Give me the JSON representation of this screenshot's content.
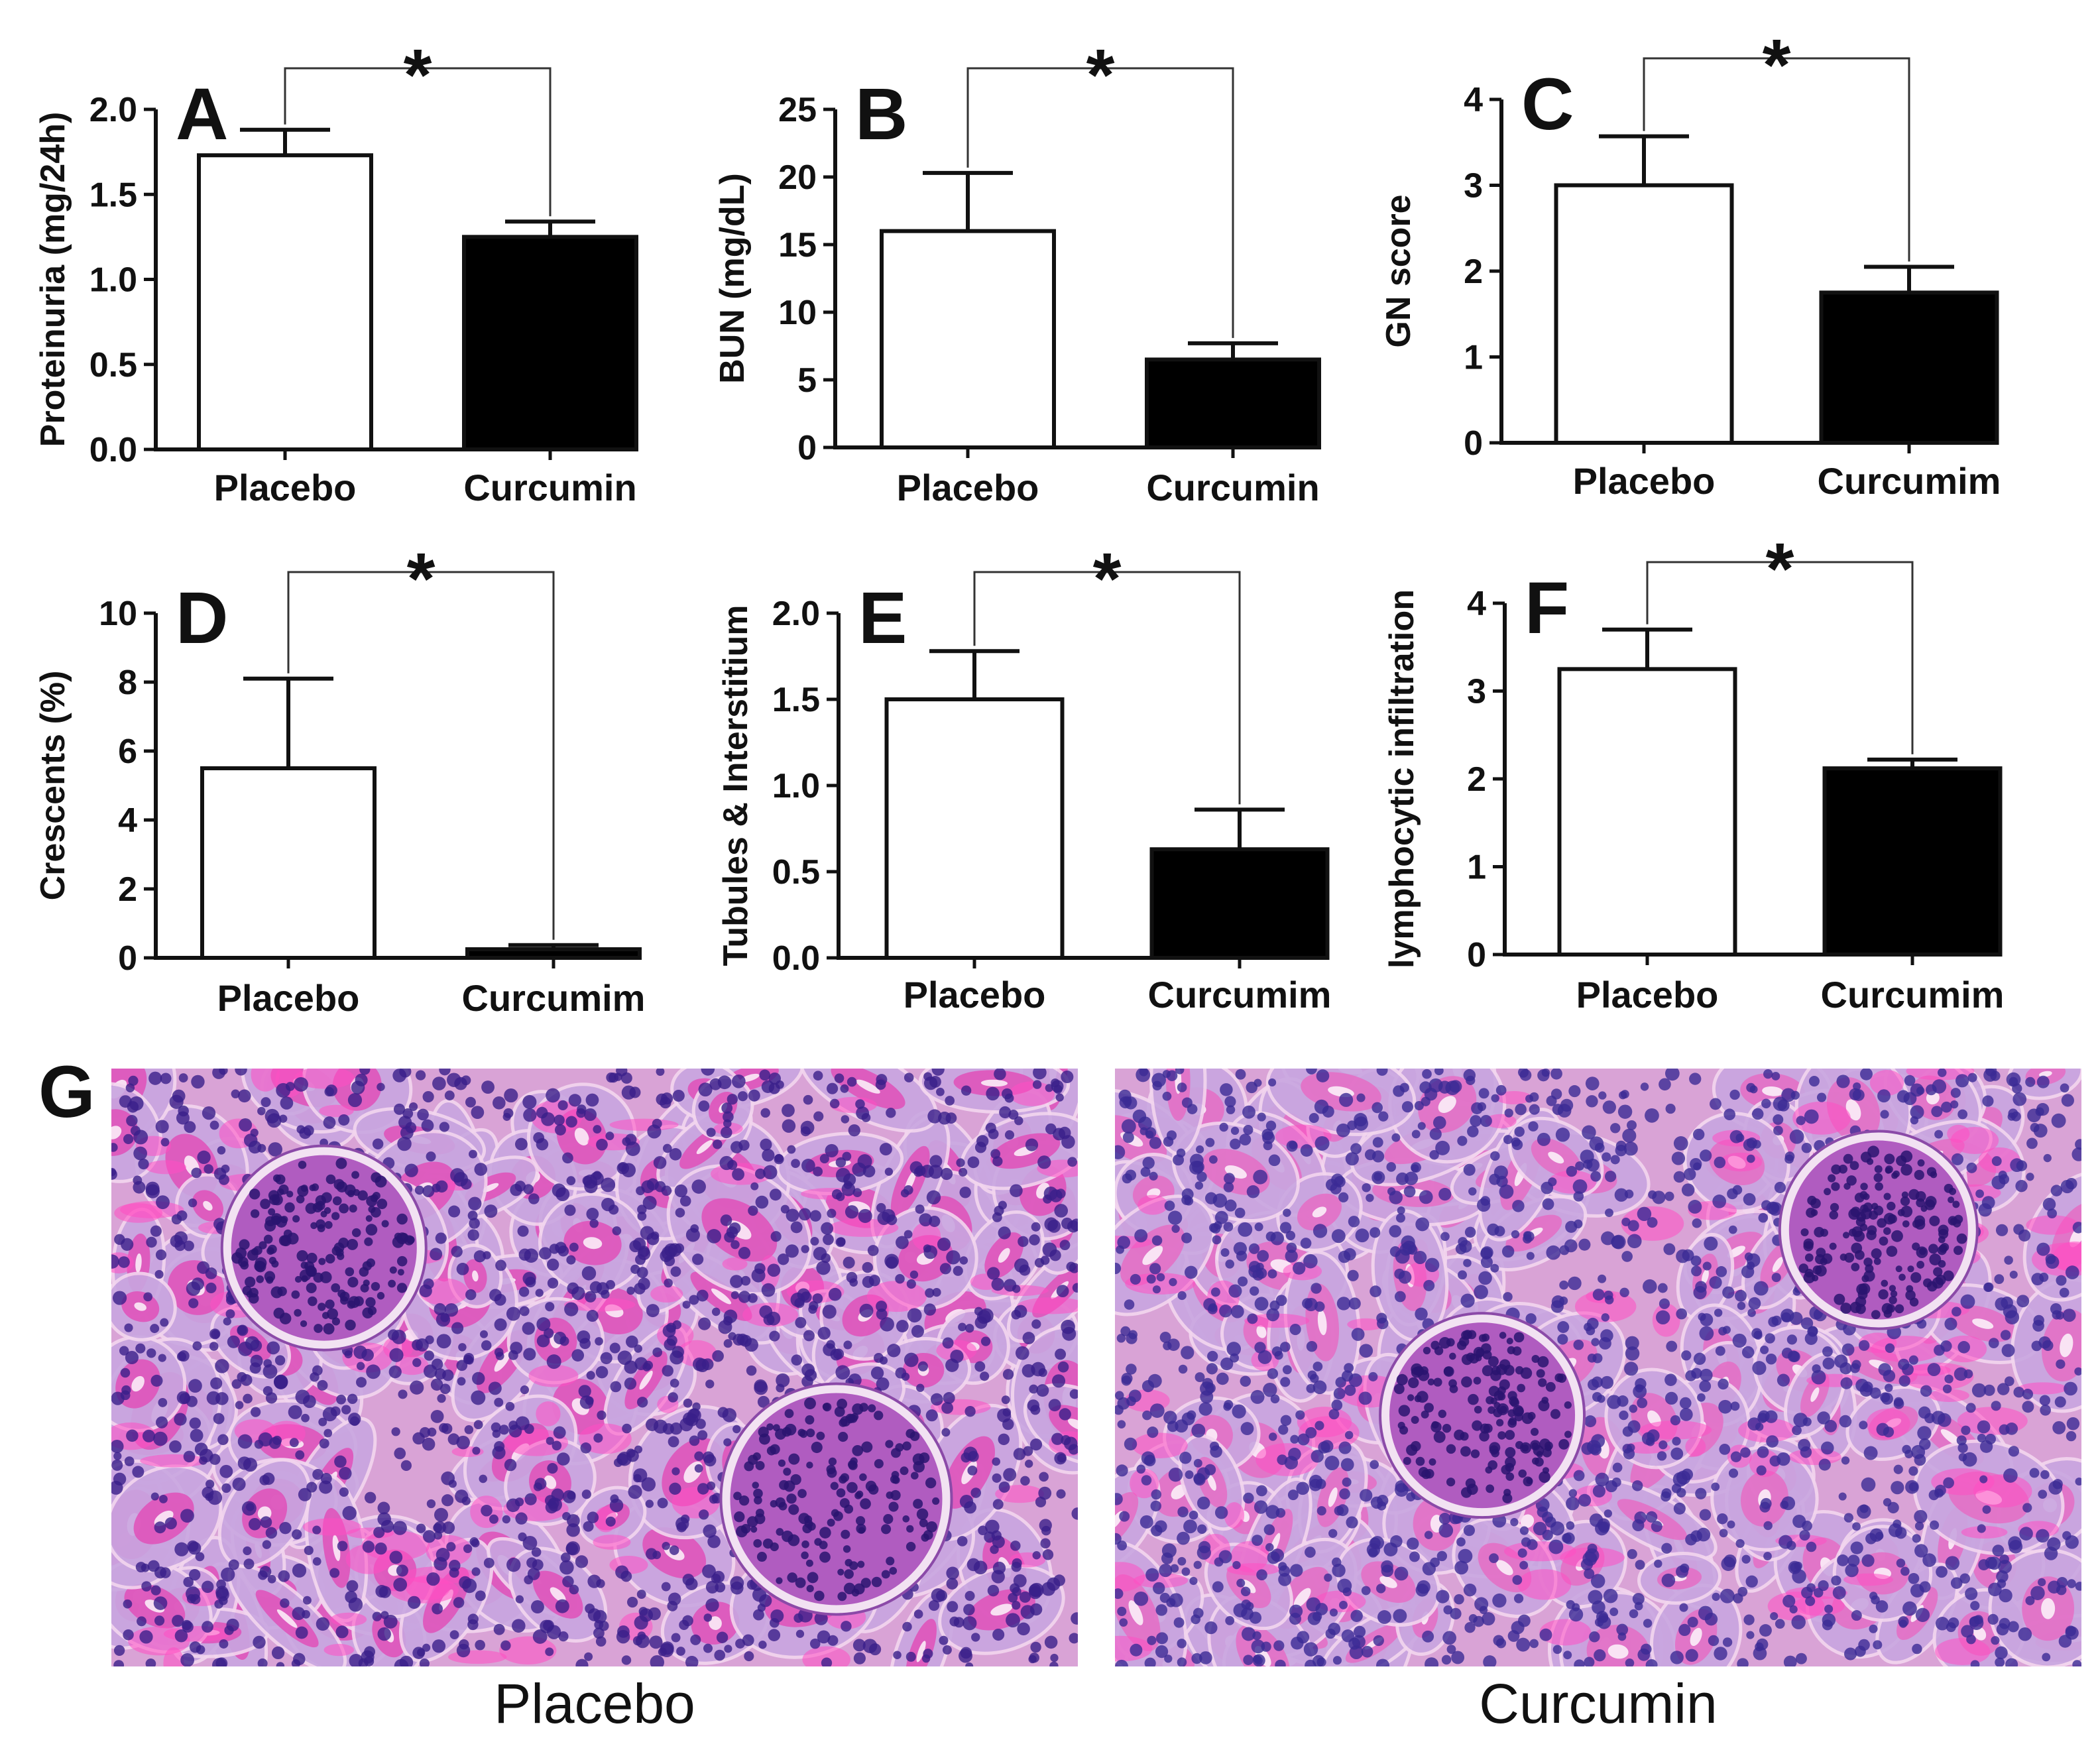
{
  "chart_data": [
    {
      "type": "bar",
      "panel_label": "A",
      "categories": [
        "Placebo",
        "Curcumin"
      ],
      "values": [
        1.73,
        1.25
      ],
      "errors": [
        0.15,
        0.09
      ],
      "ylabel": "Proteinuria (mg/24h)",
      "ylim": [
        0,
        2.0
      ],
      "yticks": [
        "0.0",
        "0.5",
        "1.0",
        "1.5",
        "2.0"
      ],
      "significance": "*",
      "legend": "none",
      "grid": false
    },
    {
      "type": "bar",
      "panel_label": "B",
      "categories": [
        "Placebo",
        "Curcumin"
      ],
      "values": [
        16.0,
        6.5
      ],
      "errors": [
        4.3,
        1.2
      ],
      "ylabel": "BUN (mg/dL)",
      "ylim": [
        0,
        25
      ],
      "yticks": [
        "0",
        "5",
        "10",
        "15",
        "20",
        "25"
      ],
      "significance": "*",
      "legend": "none",
      "grid": false
    },
    {
      "type": "bar",
      "panel_label": "C",
      "categories": [
        "Placebo",
        "Curcumim"
      ],
      "values": [
        3.0,
        1.75
      ],
      "errors": [
        0.57,
        0.3
      ],
      "ylabel": "GN score",
      "ylim": [
        0,
        4
      ],
      "yticks": [
        "0",
        "1",
        "2",
        "3",
        "4"
      ],
      "significance": "*",
      "legend": "none",
      "grid": false
    },
    {
      "type": "bar",
      "panel_label": "D",
      "categories": [
        "Placebo",
        "Curcumim"
      ],
      "values": [
        5.5,
        0.25
      ],
      "errors": [
        2.6,
        0.12
      ],
      "ylabel": "Crescents (%)",
      "ylim": [
        0,
        10
      ],
      "yticks": [
        "0",
        "2",
        "4",
        "6",
        "8",
        "10"
      ],
      "significance": "*",
      "legend": "none",
      "grid": false
    },
    {
      "type": "bar",
      "panel_label": "E",
      "categories": [
        "Placebo",
        "Curcumim"
      ],
      "values": [
        1.5,
        0.63
      ],
      "errors": [
        0.28,
        0.23
      ],
      "ylabel": "Tubules & Interstitium",
      "ylim": [
        0,
        2.0
      ],
      "yticks": [
        "0.0",
        "0.5",
        "1.0",
        "1.5",
        "2.0"
      ],
      "significance": "*",
      "legend": "none",
      "grid": false
    },
    {
      "type": "bar",
      "panel_label": "F",
      "categories": [
        "Placebo",
        "Curcumim"
      ],
      "values": [
        3.25,
        2.12
      ],
      "errors": [
        0.45,
        0.1
      ],
      "ylabel": "lymphocytic infiltration",
      "ylim": [
        0,
        4
      ],
      "yticks": [
        "0",
        "1",
        "2",
        "3",
        "4"
      ],
      "significance": "*",
      "legend": "none",
      "grid": false
    }
  ],
  "histology": {
    "panel_label": "G",
    "images": [
      {
        "caption": "Placebo",
        "stain_color": "#e04fb8",
        "nuclei_color": "#3a1f8a"
      },
      {
        "caption": "Curcumin",
        "stain_color": "#e56cc4",
        "nuclei_color": "#3b2a95"
      }
    ]
  }
}
